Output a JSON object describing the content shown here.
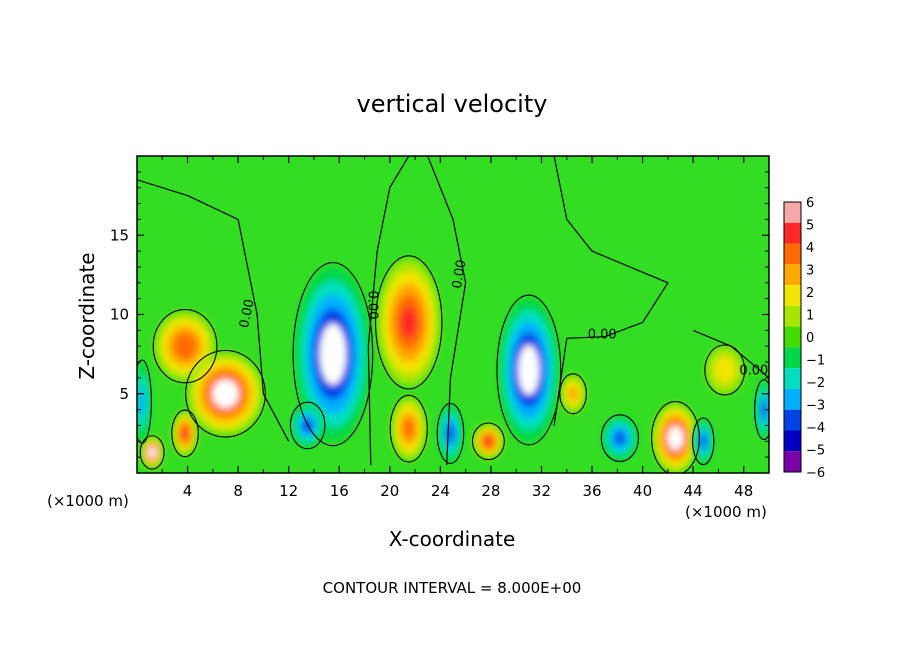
{
  "chart_data": {
    "type": "heatmap",
    "title": "vertical velocity",
    "xlabel": "X-coordinate",
    "ylabel": "Z-coordinate",
    "x_unit_label": "(×1000 m)",
    "x_unit_label_right": "(×1000 m)",
    "xlim": [
      0,
      50
    ],
    "ylim": [
      0,
      20
    ],
    "x_ticks": [
      4,
      8,
      12,
      16,
      20,
      24,
      28,
      32,
      36,
      40,
      44,
      48
    ],
    "y_ticks": [
      5,
      10,
      15
    ],
    "colorbar": {
      "ticks": [
        "6",
        "5",
        "4",
        "3",
        "2",
        "1",
        "0",
        "−1",
        "−2",
        "−3",
        "−4",
        "−5",
        "−6"
      ],
      "colors": [
        "#f6a8a8",
        "#ff2828",
        "#ff6a00",
        "#ffa800",
        "#f2e600",
        "#a6e600",
        "#44dd00",
        "#00d84c",
        "#00e0c0",
        "#00b0ff",
        "#0044e8",
        "#0000c0",
        "#7a00a8"
      ],
      "range": [
        -6,
        6
      ]
    },
    "background_color": "#33dd22",
    "contour_level": "0.00",
    "footer": "CONTOUR INTERVAL =  8.000E+00",
    "features": [
      {
        "kind": "updraft",
        "x": 1.2,
        "z": 1.3,
        "rx": 0.9,
        "rz": 1.0,
        "w": 6
      },
      {
        "kind": "updraft",
        "x": 3.8,
        "z": 8.0,
        "rx": 2.4,
        "rz": 2.2,
        "w": 4.5
      },
      {
        "kind": "updraft",
        "x": 7.0,
        "z": 5.0,
        "rx": 3.0,
        "rz": 2.6,
        "w": 6
      },
      {
        "kind": "updraft",
        "x": 3.8,
        "z": 2.5,
        "rx": 1.0,
        "rz": 1.4,
        "w": 5
      },
      {
        "kind": "downdraft",
        "x": 0.4,
        "z": 4.5,
        "rx": 0.7,
        "rz": 2.5,
        "w": -3
      },
      {
        "kind": "downdraft",
        "x": 15.5,
        "z": 7.5,
        "rx": 3.0,
        "rz": 5.5,
        "w": -6
      },
      {
        "kind": "downdraft",
        "x": 13.5,
        "z": 3.0,
        "rx": 1.3,
        "rz": 1.4,
        "w": -4
      },
      {
        "kind": "updraft",
        "x": 21.5,
        "z": 9.5,
        "rx": 2.5,
        "rz": 4.0,
        "w": 5
      },
      {
        "kind": "updraft",
        "x": 21.5,
        "z": 2.8,
        "rx": 1.4,
        "rz": 2.0,
        "w": 4
      },
      {
        "kind": "downdraft",
        "x": 24.8,
        "z": 2.5,
        "rx": 1.0,
        "rz": 1.8,
        "w": -4
      },
      {
        "kind": "updraft",
        "x": 27.8,
        "z": 2.0,
        "rx": 1.2,
        "rz": 1.1,
        "w": 5
      },
      {
        "kind": "downdraft",
        "x": 31.0,
        "z": 6.5,
        "rx": 2.4,
        "rz": 4.5,
        "w": -6
      },
      {
        "kind": "updraft",
        "x": 34.5,
        "z": 5.0,
        "rx": 1.0,
        "rz": 1.2,
        "w": 3
      },
      {
        "kind": "downdraft",
        "x": 38.2,
        "z": 2.2,
        "rx": 1.4,
        "rz": 1.4,
        "w": -4
      },
      {
        "kind": "updraft",
        "x": 42.6,
        "z": 2.2,
        "rx": 1.8,
        "rz": 2.2,
        "w": 6
      },
      {
        "kind": "downdraft",
        "x": 44.8,
        "z": 2.0,
        "rx": 0.8,
        "rz": 1.4,
        "w": -4
      },
      {
        "kind": "updraft",
        "x": 46.5,
        "z": 6.5,
        "rx": 1.5,
        "rz": 1.5,
        "w": 2
      },
      {
        "kind": "downdraft",
        "x": 49.6,
        "z": 4.0,
        "rx": 0.7,
        "rz": 1.8,
        "w": -4
      }
    ],
    "contour_labels": [
      {
        "text": "0.00",
        "x": 9.0,
        "z": 10.0,
        "angle": -78
      },
      {
        "text": "0.00",
        "x": 18.3,
        "z": 10.6,
        "angle": 90
      },
      {
        "text": "0.00",
        "x": 25.8,
        "z": 12.5,
        "angle": -80
      },
      {
        "text": "0.00",
        "x": 36.8,
        "z": 8.5,
        "angle": 0
      },
      {
        "text": "0.00",
        "x": 48.8,
        "z": 6.2,
        "angle": 0
      }
    ]
  }
}
